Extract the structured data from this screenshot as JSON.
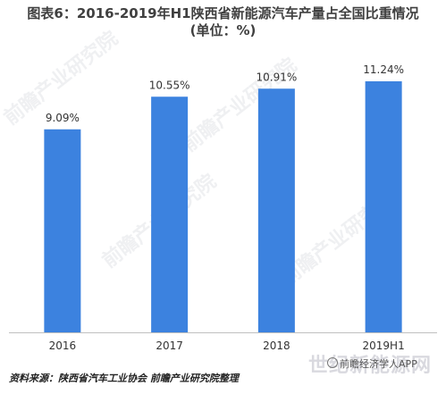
{
  "title_line1": "图表6：2016-2019年H1陕西省新能源汽车产量占全国比重情况",
  "title_line2": "(单位：%)",
  "chart_data": {
    "type": "bar",
    "categories": [
      "2016",
      "2017",
      "2018",
      "2019H1"
    ],
    "values": [
      9.09,
      10.55,
      10.91,
      11.24
    ],
    "value_labels": [
      "9.09%",
      "10.55%",
      "10.91%",
      "11.24%"
    ],
    "title": "图表6：2016-2019年H1陕西省新能源汽车产量占全国比重情况 (单位：%)",
    "xlabel": "",
    "ylabel": "",
    "ylim": [
      0,
      12.8
    ],
    "grid": false,
    "legend": "none",
    "bar_color": "#3c82df"
  },
  "footer": {
    "source": "资料来源：陕西省汽车工业协会 前瞻产业研究院整理",
    "credit": "前瞻经济学人APP",
    "watermark_corner": "世纪新能源网"
  },
  "watermark_text": "前瞻产业研究院"
}
